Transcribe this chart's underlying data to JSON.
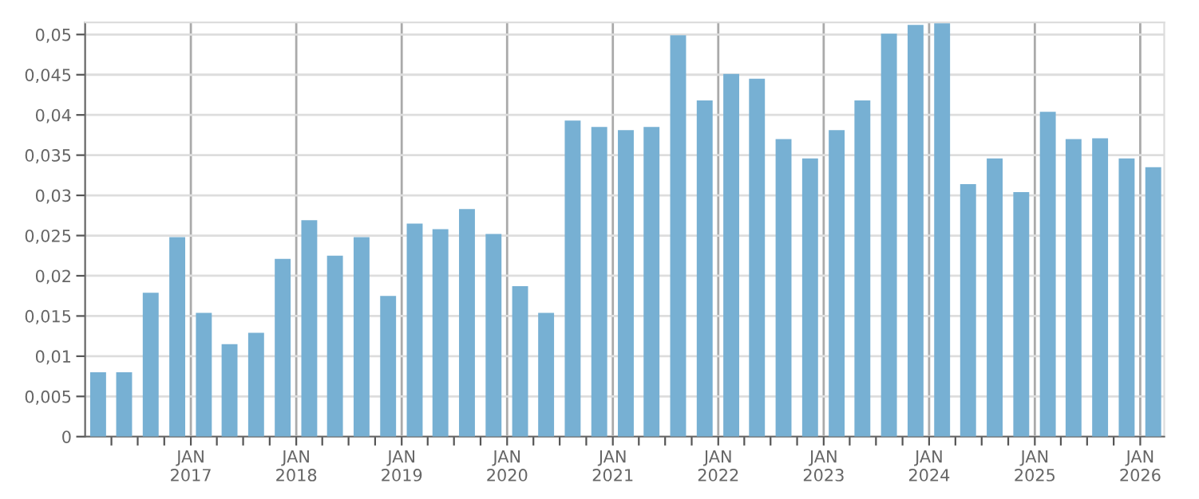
{
  "chart_data": {
    "type": "bar",
    "x": [
      "2016-02-15",
      "2016-05-15",
      "2016-08-15",
      "2016-11-15",
      "2017-02-15",
      "2017-05-15",
      "2017-08-15",
      "2017-11-15",
      "2018-02-15",
      "2018-05-15",
      "2018-08-15",
      "2018-11-15",
      "2019-02-15",
      "2019-05-15",
      "2019-08-15",
      "2019-11-15",
      "2020-02-15",
      "2020-05-15",
      "2020-08-15",
      "2020-11-15",
      "2021-02-15",
      "2021-05-15",
      "2021-08-15",
      "2021-11-15",
      "2022-02-15",
      "2022-05-15",
      "2022-08-15",
      "2022-11-15",
      "2023-02-15",
      "2023-05-15",
      "2023-08-15",
      "2023-11-15",
      "2024-02-15",
      "2024-05-15",
      "2024-08-15",
      "2024-11-15",
      "2025-02-15",
      "2025-05-15",
      "2025-08-15",
      "2025-11-15",
      "2026-02-15"
    ],
    "values": [
      0.008,
      0.008,
      0.0179,
      0.0248,
      0.0154,
      0.0115,
      0.0129,
      0.0221,
      0.0269,
      0.0225,
      0.0248,
      0.0175,
      0.0265,
      0.0258,
      0.0283,
      0.0252,
      0.0187,
      0.0154,
      0.0393,
      0.0385,
      0.0381,
      0.0385,
      0.0499,
      0.0418,
      0.0451,
      0.0445,
      0.037,
      0.0346,
      0.0381,
      0.0418,
      0.0501,
      0.0512,
      0.0514,
      0.0314,
      0.0346,
      0.0304,
      0.0404,
      0.037,
      0.0371,
      0.0346,
      0.0335
    ],
    "color": "#77b0d3",
    "xlim": [
      "2016-01-01",
      "2026-03-25"
    ],
    "xticks": [
      {
        "value": "2016-04-01",
        "label": null
      },
      {
        "value": "2016-07-01",
        "label": null
      },
      {
        "value": "2016-10-01",
        "label": null
      },
      {
        "value": "2017-01-01",
        "label": "JAN\n2017"
      },
      {
        "value": "2017-04-01",
        "label": null
      },
      {
        "value": "2017-07-01",
        "label": null
      },
      {
        "value": "2017-10-01",
        "label": null
      },
      {
        "value": "2018-01-01",
        "label": "JAN\n2018"
      },
      {
        "value": "2018-04-01",
        "label": null
      },
      {
        "value": "2018-07-01",
        "label": null
      },
      {
        "value": "2018-10-01",
        "label": null
      },
      {
        "value": "2019-01-01",
        "label": "JAN\n2019"
      },
      {
        "value": "2019-04-01",
        "label": null
      },
      {
        "value": "2019-07-01",
        "label": null
      },
      {
        "value": "2019-10-01",
        "label": null
      },
      {
        "value": "2020-01-01",
        "label": "JAN\n2020"
      },
      {
        "value": "2020-04-01",
        "label": null
      },
      {
        "value": "2020-07-01",
        "label": null
      },
      {
        "value": "2020-10-01",
        "label": null
      },
      {
        "value": "2021-01-01",
        "label": "JAN\n2021"
      },
      {
        "value": "2021-04-01",
        "label": null
      },
      {
        "value": "2021-07-01",
        "label": null
      },
      {
        "value": "2021-10-01",
        "label": null
      },
      {
        "value": "2022-01-01",
        "label": "JAN\n2022"
      },
      {
        "value": "2022-04-01",
        "label": null
      },
      {
        "value": "2022-07-01",
        "label": null
      },
      {
        "value": "2022-10-01",
        "label": null
      },
      {
        "value": "2023-01-01",
        "label": "JAN\n2023"
      },
      {
        "value": "2023-04-01",
        "label": null
      },
      {
        "value": "2023-07-01",
        "label": null
      },
      {
        "value": "2023-10-01",
        "label": null
      },
      {
        "value": "2024-01-01",
        "label": "JAN\n2024"
      },
      {
        "value": "2024-04-01",
        "label": null
      },
      {
        "value": "2024-07-01",
        "label": null
      },
      {
        "value": "2024-10-01",
        "label": null
      },
      {
        "value": "2025-01-01",
        "label": "JAN\n2025"
      },
      {
        "value": "2025-04-01",
        "label": null
      },
      {
        "value": "2025-07-01",
        "label": null
      },
      {
        "value": "2025-10-01",
        "label": null
      },
      {
        "value": "2026-01-01",
        "label": "JAN\n2026"
      }
    ],
    "ylim": [
      0,
      0.0515
    ],
    "yticks": [
      {
        "value": 0,
        "label": "0"
      },
      {
        "value": 0.005,
        "label": "0,005"
      },
      {
        "value": 0.01,
        "label": "0,01"
      },
      {
        "value": 0.015,
        "label": "0,015"
      },
      {
        "value": 0.02,
        "label": "0,02"
      },
      {
        "value": 0.025,
        "label": "0,025"
      },
      {
        "value": 0.03,
        "label": "0,03"
      },
      {
        "value": 0.035,
        "label": "0,035"
      },
      {
        "value": 0.04,
        "label": "0,04"
      },
      {
        "value": 0.045,
        "label": "0,045"
      },
      {
        "value": 0.05,
        "label": "0,05"
      }
    ],
    "grid": true,
    "legend": false
  }
}
